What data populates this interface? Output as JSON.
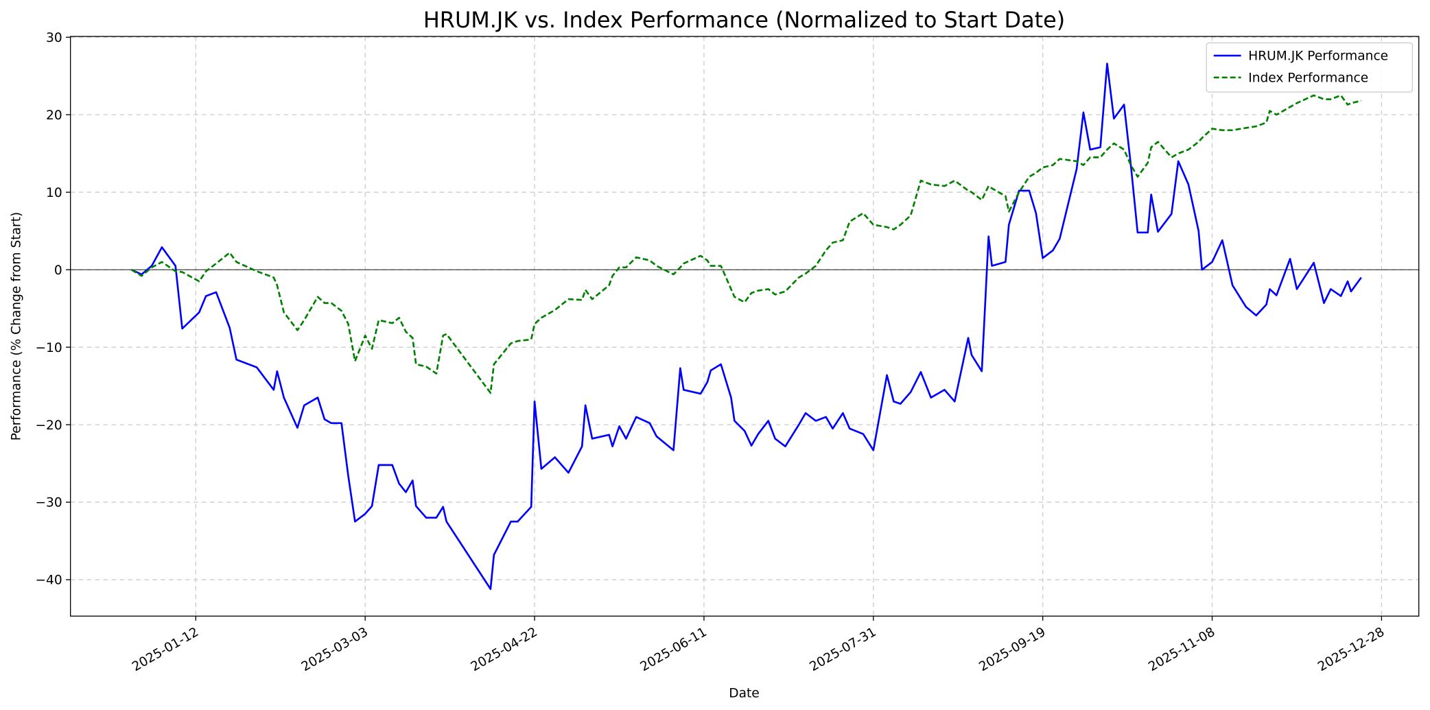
{
  "chart_data": {
    "type": "line",
    "title": "HRUM.JK vs. Index Performance (Normalized to Start Date)",
    "x_label": "Date",
    "y_label": "Performance (% Change from Start)",
    "x": [
      "2024-12-24",
      "2024-12-27",
      "2024-12-30",
      "2025-01-02",
      "2025-01-06",
      "2025-01-08",
      "2025-01-13",
      "2025-01-15",
      "2025-01-18",
      "2025-01-22",
      "2025-01-24",
      "2025-01-30",
      "2025-02-04",
      "2025-02-05",
      "2025-02-07",
      "2025-02-11",
      "2025-02-13",
      "2025-02-17",
      "2025-02-19",
      "2025-02-21",
      "2025-02-24",
      "2025-02-26",
      "2025-02-28",
      "2025-03-03",
      "2025-03-05",
      "2025-03-07",
      "2025-03-11",
      "2025-03-13",
      "2025-03-15",
      "2025-03-17",
      "2025-03-18",
      "2025-03-21",
      "2025-03-24",
      "2025-03-26",
      "2025-03-27",
      "2025-04-09",
      "2025-04-10",
      "2025-04-15",
      "2025-04-17",
      "2025-04-21",
      "2025-04-22",
      "2025-04-24",
      "2025-04-28",
      "2025-05-02",
      "2025-05-06",
      "2025-05-07",
      "2025-05-09",
      "2025-05-14",
      "2025-05-15",
      "2025-05-17",
      "2025-05-19",
      "2025-05-22",
      "2025-05-26",
      "2025-05-28",
      "2025-06-02",
      "2025-06-04",
      "2025-06-05",
      "2025-06-10",
      "2025-06-12",
      "2025-06-13",
      "2025-06-16",
      "2025-06-19",
      "2025-06-20",
      "2025-06-23",
      "2025-06-25",
      "2025-06-27",
      "2025-06-30",
      "2025-07-02",
      "2025-07-05",
      "2025-07-09",
      "2025-07-11",
      "2025-07-14",
      "2025-07-17",
      "2025-07-19",
      "2025-07-22",
      "2025-07-24",
      "2025-07-28",
      "2025-07-31",
      "2025-08-04",
      "2025-08-06",
      "2025-08-08",
      "2025-08-11",
      "2025-08-14",
      "2025-08-17",
      "2025-08-21",
      "2025-08-24",
      "2025-08-28",
      "2025-08-29",
      "2025-09-01",
      "2025-09-03",
      "2025-09-04",
      "2025-09-08",
      "2025-09-09",
      "2025-09-12",
      "2025-09-15",
      "2025-09-17",
      "2025-09-19",
      "2025-09-22",
      "2025-09-24",
      "2025-09-29",
      "2025-10-01",
      "2025-10-03",
      "2025-10-06",
      "2025-10-08",
      "2025-10-10",
      "2025-10-13",
      "2025-10-15",
      "2025-10-17",
      "2025-10-20",
      "2025-10-21",
      "2025-10-23",
      "2025-10-27",
      "2025-10-29",
      "2025-11-01",
      "2025-11-04",
      "2025-11-05",
      "2025-11-08",
      "2025-11-11",
      "2025-11-14",
      "2025-11-18",
      "2025-11-21",
      "2025-11-24",
      "2025-11-25",
      "2025-11-27",
      "2025-12-01",
      "2025-12-03",
      "2025-12-08",
      "2025-12-11",
      "2025-12-13",
      "2025-12-16",
      "2025-12-18",
      "2025-12-19",
      "2025-12-22"
    ],
    "series": [
      {
        "name": "HRUM.JK Performance",
        "color": "#0000ff",
        "dash": "solid",
        "values": [
          0,
          -0.6,
          0.5,
          2.9,
          0.5,
          -7.6,
          -5.5,
          -3.4,
          -2.9,
          -7.5,
          -11.6,
          -12.6,
          -15.5,
          -13.1,
          -16.5,
          -20.4,
          -17.5,
          -16.5,
          -19.3,
          -19.8,
          -19.8,
          -26.6,
          -32.5,
          -31.5,
          -30.5,
          -25.2,
          -25.2,
          -27.6,
          -28.7,
          -27.2,
          -30.5,
          -32.0,
          -32.0,
          -30.6,
          -32.5,
          -41.2,
          -36.8,
          -32.5,
          -32.5,
          -30.6,
          -17.0,
          -25.7,
          -24.2,
          -26.2,
          -22.8,
          -17.5,
          -21.8,
          -21.3,
          -22.8,
          -20.2,
          -21.8,
          -19.0,
          -19.8,
          -21.5,
          -23.3,
          -12.7,
          -15.5,
          -16.0,
          -14.5,
          -13.0,
          -12.2,
          -16.5,
          -19.5,
          -20.8,
          -22.7,
          -21.2,
          -19.5,
          -21.8,
          -22.8,
          -20.0,
          -18.5,
          -19.5,
          -19.0,
          -20.5,
          -18.5,
          -20.5,
          -21.2,
          -23.3,
          -13.6,
          -17.0,
          -17.3,
          -15.8,
          -13.2,
          -16.5,
          -15.5,
          -17.0,
          -8.8,
          -11.0,
          -13.1,
          4.3,
          0.5,
          1.0,
          5.8,
          10.2,
          10.2,
          7.3,
          1.5,
          2.5,
          4.0,
          13.0,
          20.3,
          15.5,
          15.8,
          26.6,
          19.5,
          21.3,
          13.5,
          4.8,
          4.8,
          9.7,
          4.9,
          7.2,
          14.0,
          11.0,
          5.0,
          0.0,
          1.0,
          3.8,
          -2.0,
          -4.8,
          -5.9,
          -4.5,
          -2.5,
          -3.3,
          1.4,
          -2.5,
          0.9,
          -4.3,
          -2.5,
          -3.4,
          -1.5,
          -2.8,
          -1.0
        ]
      },
      {
        "name": "Index Performance",
        "color": "#008000",
        "dash": "dashed",
        "values": [
          0,
          -0.8,
          0.3,
          1.0,
          -0.2,
          -0.3,
          -1.5,
          -0.2,
          0.8,
          2.2,
          1.0,
          -0.2,
          -1.0,
          -2.0,
          -5.5,
          -7.8,
          -6.5,
          -3.5,
          -4.3,
          -4.3,
          -5.3,
          -7.0,
          -11.8,
          -8.5,
          -10.2,
          -6.5,
          -6.9,
          -6.2,
          -8.0,
          -8.8,
          -12.2,
          -12.5,
          -13.4,
          -8.5,
          -8.3,
          -15.9,
          -12.2,
          -9.5,
          -9.2,
          -9.0,
          -7.0,
          -6.2,
          -5.2,
          -3.8,
          -3.9,
          -2.6,
          -3.8,
          -2.0,
          -0.8,
          0.3,
          0.3,
          1.6,
          1.2,
          0.5,
          -0.6,
          0.3,
          0.8,
          1.8,
          1.2,
          0.5,
          0.5,
          -2.5,
          -3.5,
          -4.2,
          -3.0,
          -2.7,
          -2.5,
          -3.2,
          -2.8,
          -1.0,
          -0.5,
          0.5,
          2.5,
          3.5,
          3.8,
          6.2,
          7.3,
          5.8,
          5.5,
          5.2,
          5.8,
          7.0,
          11.5,
          11.0,
          10.8,
          11.5,
          10.2,
          10.0,
          9.0,
          10.8,
          10.5,
          9.5,
          7.5,
          10.0,
          12.0,
          12.5,
          13.2,
          13.5,
          14.3,
          14.0,
          13.5,
          14.5,
          14.5,
          15.5,
          16.3,
          15.5,
          13.5,
          12.0,
          13.8,
          15.8,
          16.5,
          14.5,
          15.0,
          15.5,
          16.5,
          17.0,
          18.2,
          18.0,
          18.0,
          18.3,
          18.5,
          19.0,
          20.5,
          20.0,
          21.0,
          21.5,
          22.5,
          22.0,
          22.0,
          22.5,
          21.3,
          21.5,
          21.8
        ]
      }
    ],
    "hline": 0,
    "xlim": [
      "2024-12-06",
      "2026-01-08"
    ],
    "xticks": [
      "2025-01-12",
      "2025-03-03",
      "2025-04-22",
      "2025-06-11",
      "2025-07-31",
      "2025-09-19",
      "2025-11-08",
      "2025-12-28"
    ],
    "ylim": [
      -44.7,
      30.1
    ],
    "yticks": [
      {
        "value": -40,
        "label": "−40"
      },
      {
        "value": -30,
        "label": "−30"
      },
      {
        "value": -20,
        "label": "−20"
      },
      {
        "value": -10,
        "label": "−10"
      },
      0,
      10,
      20,
      30
    ],
    "grid": true,
    "legend": "upper right"
  }
}
